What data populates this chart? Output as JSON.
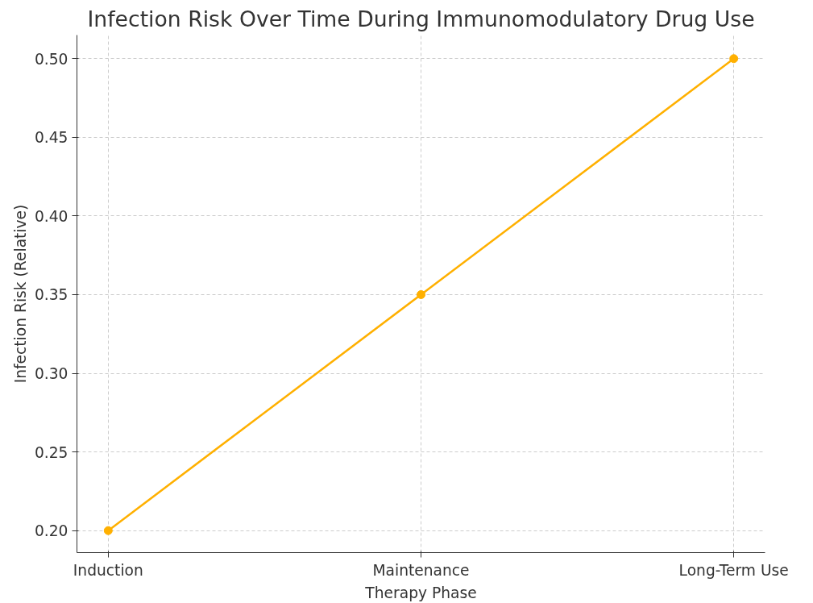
{
  "chart_data": {
    "type": "line",
    "title": "Infection Risk Over Time During Immunomodulatory Drug Use",
    "xlabel": "Therapy Phase",
    "ylabel": "Infection Risk (Relative)",
    "categories": [
      "Induction",
      "Maintenance",
      "Long-Term Use"
    ],
    "series": [
      {
        "color": "#ffb000",
        "values": [
          0.2,
          0.35,
          0.5
        ]
      }
    ],
    "ylim": [
      0.186,
      0.515
    ],
    "yticks": [
      {
        "value": 0.2,
        "label": "0.20"
      },
      {
        "value": 0.25,
        "label": "0.25"
      },
      {
        "value": 0.3,
        "label": "0.30"
      },
      {
        "value": 0.35,
        "label": "0.35"
      },
      {
        "value": 0.4,
        "label": "0.40"
      },
      {
        "value": 0.45,
        "label": "0.45"
      },
      {
        "value": 0.5,
        "label": "0.50"
      }
    ],
    "grid": true,
    "marker": "circle",
    "line_style": "solid"
  }
}
